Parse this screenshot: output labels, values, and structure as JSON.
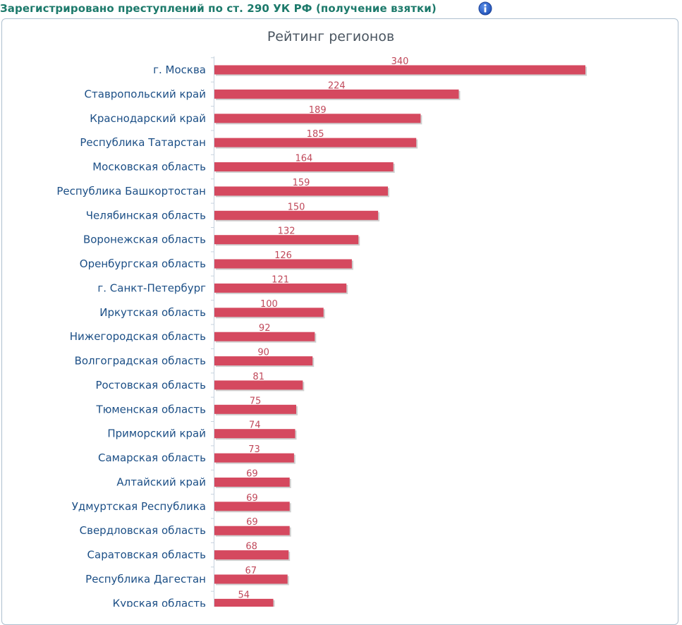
{
  "header": {
    "title": "Зарегистрировано преступлений по ст. 290 УК РФ (получение взятки)",
    "info_icon": "info-icon"
  },
  "colors": {
    "bar": "#d5495f",
    "value_label": "#c0485a",
    "category_label": "#1c4f86",
    "header_title": "#1d7a6b"
  },
  "chart_data": {
    "type": "bar",
    "orientation": "horizontal",
    "title": "Рейтинг регионов",
    "xlabel": "",
    "ylabel": "",
    "xlim": [
      0,
      340
    ],
    "grid": false,
    "categories": [
      "г. Москва",
      "Ставропольский край",
      "Краснодарский край",
      "Республика Татарстан",
      "Московская область",
      "Республика Башкортостан",
      "Челябинская область",
      "Воронежская область",
      "Оренбургская область",
      "г. Санкт-Петербург",
      "Иркутская область",
      "Нижегородская область",
      "Волгоградская область",
      "Ростовская область",
      "Тюменская область",
      "Приморский край",
      "Самарская область",
      "Алтайский край",
      "Удмуртская Республика",
      "Свердловская область",
      "Саратовская область",
      "Республика Дагестан",
      "Курская область"
    ],
    "values": [
      340,
      224,
      189,
      185,
      164,
      159,
      150,
      132,
      126,
      121,
      100,
      92,
      90,
      81,
      75,
      74,
      73,
      69,
      69,
      69,
      68,
      67,
      54
    ]
  }
}
